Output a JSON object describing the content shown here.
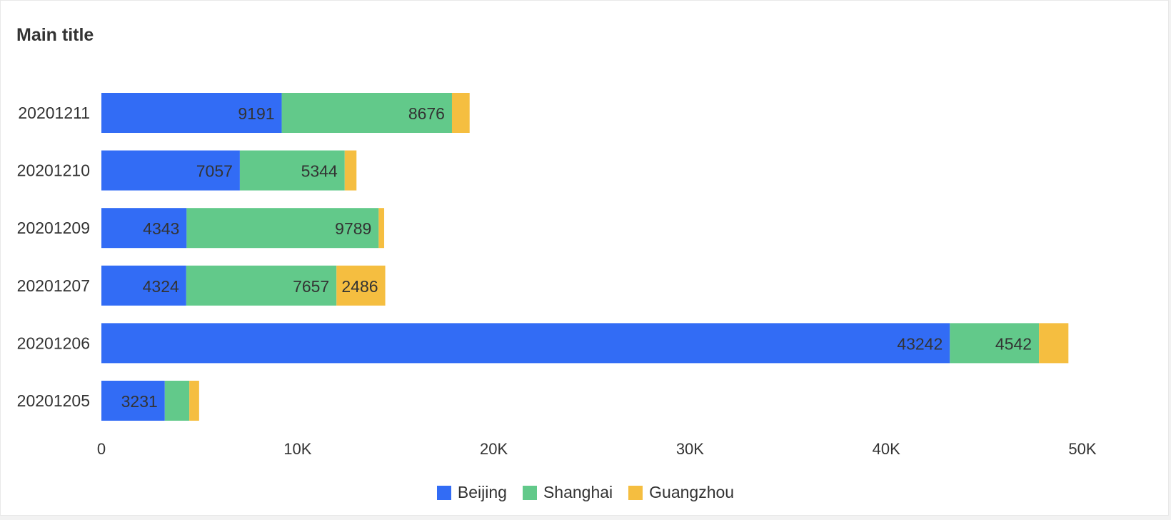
{
  "title": "Main title",
  "chart_data": {
    "type": "bar",
    "orientation": "horizontal",
    "stacked": true,
    "title": "Main title",
    "categories": [
      "20201211",
      "20201210",
      "20201209",
      "20201207",
      "20201206",
      "20201205"
    ],
    "series": [
      {
        "name": "Beijing",
        "color": "#326CF5",
        "values": [
          9191,
          7057,
          4343,
          4324,
          43242,
          3231
        ],
        "labels": [
          true,
          true,
          true,
          true,
          true,
          true
        ]
      },
      {
        "name": "Shanghai",
        "color": "#62C98A",
        "values": [
          8676,
          5344,
          9789,
          7657,
          4542,
          1250
        ],
        "labels": [
          true,
          true,
          true,
          true,
          true,
          false
        ]
      },
      {
        "name": "Guangzhou",
        "color": "#F5BE40",
        "values": [
          900,
          600,
          280,
          2486,
          1500,
          500
        ],
        "labels": [
          false,
          false,
          false,
          true,
          false,
          false
        ]
      }
    ],
    "xlim": [
      0,
      50000
    ],
    "xticks": [
      0,
      10000,
      20000,
      30000,
      40000,
      50000
    ],
    "xtick_labels": [
      "0",
      "10K",
      "20K",
      "30K",
      "40K",
      "50K"
    ],
    "grid": false,
    "legend_position": "bottom-center"
  }
}
